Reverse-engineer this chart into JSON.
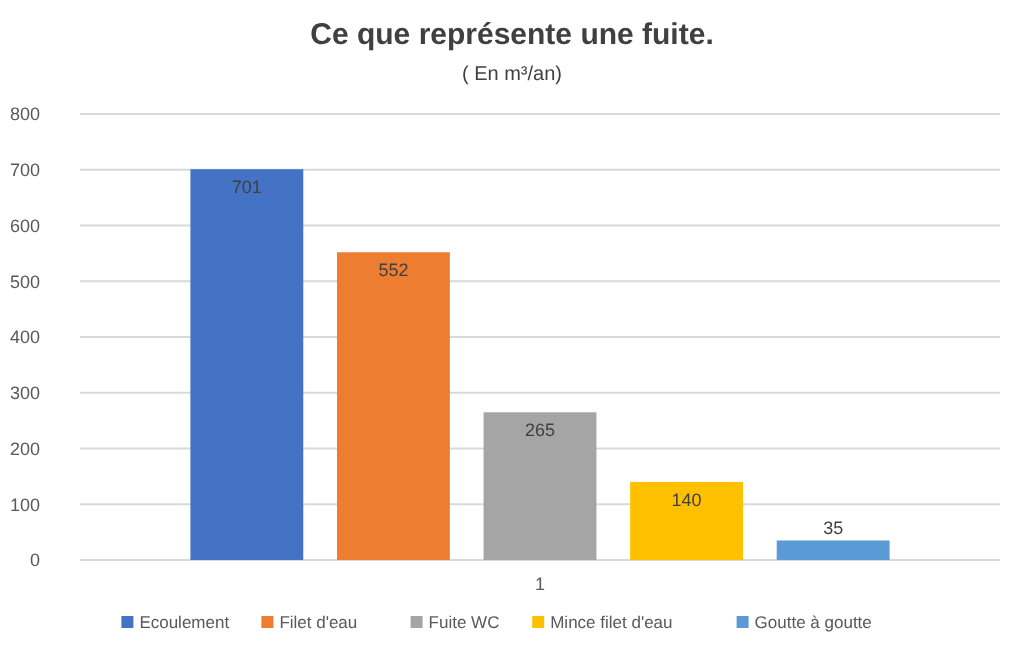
{
  "chart_data": {
    "type": "bar",
    "title": "Ce que représente une fuite.",
    "subtitle": "( En m³/an)",
    "categories": [
      "1"
    ],
    "series": [
      {
        "name": "Ecoulement",
        "color": "#4472c4",
        "values": [
          701
        ]
      },
      {
        "name": "Filet d'eau",
        "color": "#ed7d31",
        "values": [
          552
        ]
      },
      {
        "name": "Fuite WC",
        "color": "#a5a5a5",
        "values": [
          265
        ]
      },
      {
        "name": "Mince filet d'eau",
        "color": "#ffc000",
        "values": [
          140
        ]
      },
      {
        "name": "Goutte à goutte",
        "color": "#5b9bd5",
        "values": [
          35
        ]
      }
    ],
    "ylim": [
      0,
      800
    ],
    "yticks": [
      0,
      100,
      200,
      300,
      400,
      500,
      600,
      700,
      800
    ],
    "grid": "y",
    "legend": "bottom",
    "data_labels": true
  }
}
